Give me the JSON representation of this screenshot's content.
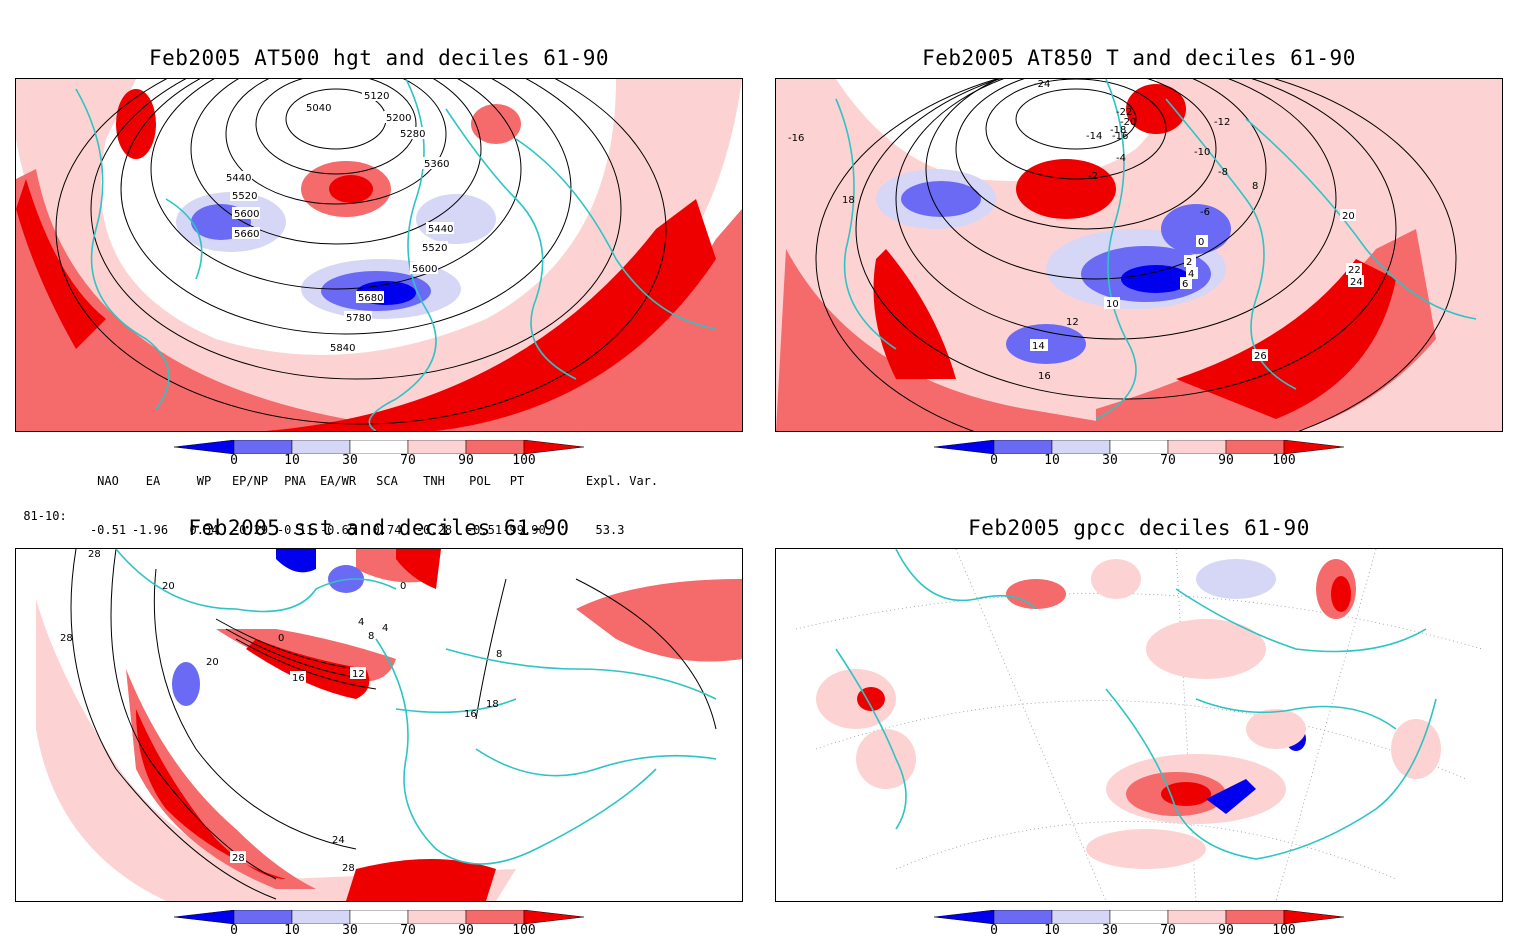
{
  "panels": {
    "p1": {
      "title": "Feb2005 AT500 hgt and deciles 61-90",
      "labels": [
        "5040",
        "5120",
        "5200",
        "5280",
        "5360",
        "5440",
        "5520",
        "5600",
        "5660",
        "5440",
        "5520",
        "5600",
        "5680",
        "5780",
        "5840"
      ]
    },
    "p2": {
      "title": "Feb2005 AT850 T and deciles 61-90",
      "labels": [
        "-16",
        "-24",
        "-22",
        "-20",
        "-18",
        "-16",
        "-14",
        "-12",
        "-10",
        "-8",
        "-6",
        "-4",
        "-2",
        "0",
        "2",
        "4",
        "6",
        "8",
        "10",
        "12",
        "14",
        "16",
        "18",
        "20",
        "22",
        "24",
        "26"
      ]
    },
    "p3": {
      "title": "Feb2005 sst and deciles 61-90",
      "labels": [
        "28",
        "20",
        "28",
        "0",
        "0",
        "4",
        "8",
        "4",
        "12",
        "16",
        "16",
        "20",
        "24",
        "28",
        "28",
        "18",
        "8"
      ]
    },
    "p4": {
      "title": "Feb2005 gpcc deciles 61-90",
      "labels": []
    }
  },
  "colorbar": {
    "ticks": [
      "0",
      "10",
      "30",
      "70",
      "90",
      "100"
    ],
    "colors": [
      "#0000ee",
      "#6a6af5",
      "#d6d6f7",
      "#ffffff",
      "#fdd2d2",
      "#f56a6a",
      "#ee0000"
    ]
  },
  "indices": {
    "headers": [
      "NAO",
      "EA",
      "WP",
      "EP/NP",
      "PNA",
      "EA/WR",
      "SCA",
      "TNH",
      "POL",
      "PT",
      "Expl. Var."
    ],
    "row_label": "81-10:",
    "values": [
      "-0.51",
      "-1.96",
      "0.34",
      "-0.29",
      "-0.11",
      "-0.65",
      "0.74",
      "-0.28",
      "-0.51",
      "-99.90",
      "53.3"
    ]
  },
  "colors": {
    "coast": "#2ec4c4",
    "red_dark": "#ee0000",
    "red_mid": "#f56a6a",
    "red_light": "#fdd2d2",
    "blue_dark": "#0000ee",
    "blue_mid": "#6a6af5",
    "blue_light": "#d6d6f7"
  }
}
